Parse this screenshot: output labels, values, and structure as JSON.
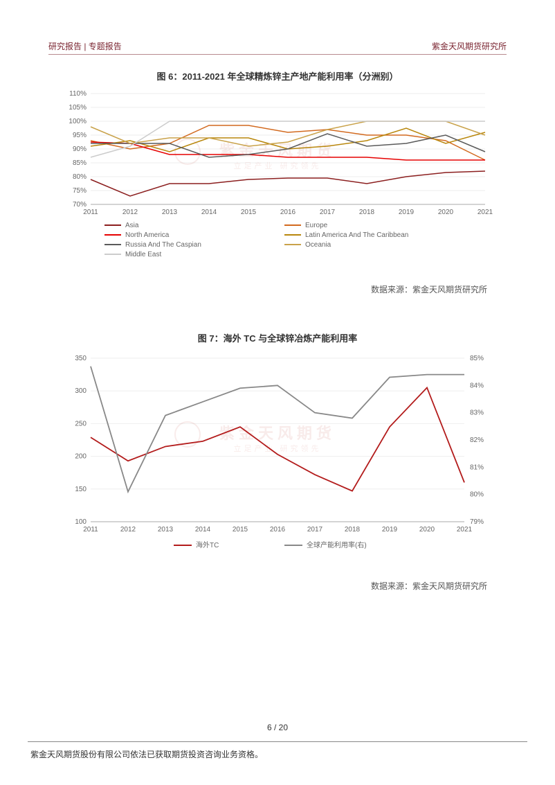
{
  "header": {
    "left": "研究报告 | 专题报告",
    "right": "紫金天风期货研究所"
  },
  "chart6": {
    "title": "图 6：2011-2021 年全球精炼锌主产地产能利用率（分洲别）",
    "type": "line",
    "years": [
      2011,
      2012,
      2013,
      2014,
      2015,
      2016,
      2017,
      2018,
      2019,
      2020,
      2021
    ],
    "ylim": [
      70,
      110
    ],
    "ytick_step": 5,
    "grid_color": "#eeeeee",
    "background_color": "#ffffff",
    "title_fontsize": 13,
    "label_fontsize": 10,
    "line_width": 1.5,
    "series": [
      {
        "name": "Asia",
        "color": "#8b1e1e",
        "values": [
          79,
          73,
          77.5,
          77.5,
          79,
          79.5,
          79.5,
          77.5,
          80,
          81.5,
          82
        ]
      },
      {
        "name": "Europe",
        "color": "#d2691e",
        "values": [
          93,
          90,
          92,
          98.5,
          98.5,
          96,
          97,
          95,
          95,
          93,
          86
        ]
      },
      {
        "name": "North America",
        "color": "#e60000",
        "values": [
          92.5,
          92,
          88,
          88,
          88,
          87,
          87,
          87,
          86,
          86,
          86
        ]
      },
      {
        "name": "Latin America And The Caribbean",
        "color": "#b8860b",
        "values": [
          91,
          93,
          89,
          94,
          94,
          90,
          91,
          93,
          97.5,
          92,
          96
        ]
      },
      {
        "name": "Russia And The Caspian",
        "color": "#5a5a5a",
        "values": [
          92,
          92,
          92,
          87,
          88,
          90,
          95.5,
          91,
          92,
          95,
          89
        ]
      },
      {
        "name": "Oceania",
        "color": "#c9a24a",
        "values": [
          98,
          92,
          94,
          94,
          91,
          92.5,
          97,
          100,
          100,
          100,
          95
        ]
      },
      {
        "name": "Middle East",
        "color": "#cccccc",
        "values": [
          87,
          91,
          100,
          100,
          100,
          100,
          100,
          100,
          100,
          100,
          100
        ]
      }
    ],
    "legend_cols": 2,
    "source": "数据来源：紫金天风期货研究所"
  },
  "chart7": {
    "title": "图 7：海外 TC 与全球锌冶炼产能利用率",
    "type": "line-dual-axis",
    "years": [
      2011,
      2012,
      2013,
      2014,
      2015,
      2016,
      2017,
      2018,
      2019,
      2020,
      2021
    ],
    "y1": {
      "lim": [
        100,
        350
      ],
      "step": 50,
      "label": ""
    },
    "y2": {
      "lim": [
        79,
        85
      ],
      "step": 1,
      "label": "",
      "suffix": "%"
    },
    "grid_color": "#eeeeee",
    "background_color": "#ffffff",
    "title_fontsize": 13,
    "label_fontsize": 10,
    "line_width": 1.8,
    "series": [
      {
        "name": "海外TC",
        "axis": "y1",
        "color": "#b31b1b",
        "values": [
          229,
          193,
          215,
          223,
          245,
          203,
          172,
          147,
          245,
          305,
          160
        ]
      },
      {
        "name": "全球产能利用率(右)",
        "axis": "y2",
        "color": "#888888",
        "values": [
          84.7,
          80.1,
          82.9,
          83.4,
          83.9,
          84.0,
          83.0,
          82.8,
          84.3,
          84.4,
          84.4
        ]
      }
    ],
    "source": "数据来源：紫金天风期货研究所"
  },
  "watermark": "紫金天风期货",
  "watermark_sub": "立足产业 研究领先",
  "pagenum": "6 / 20",
  "footer": "紫金天风期货股份有限公司依法已获取期货投资咨询业务资格。"
}
